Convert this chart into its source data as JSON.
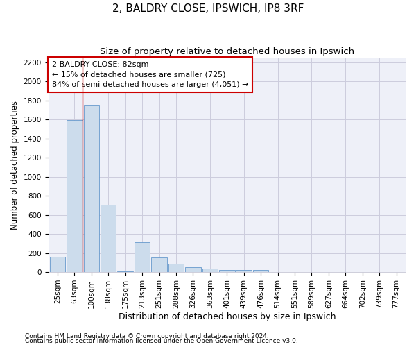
{
  "title1": "2, BALDRY CLOSE, IPSWICH, IP8 3RF",
  "title2": "Size of property relative to detached houses in Ipswich",
  "xlabel": "Distribution of detached houses by size in Ipswich",
  "ylabel": "Number of detached properties",
  "categories": [
    "25sqm",
    "63sqm",
    "100sqm",
    "138sqm",
    "175sqm",
    "213sqm",
    "251sqm",
    "288sqm",
    "326sqm",
    "363sqm",
    "401sqm",
    "439sqm",
    "476sqm",
    "514sqm",
    "551sqm",
    "589sqm",
    "627sqm",
    "664sqm",
    "702sqm",
    "739sqm",
    "777sqm"
  ],
  "values": [
    160,
    1595,
    1750,
    705,
    5,
    315,
    155,
    85,
    50,
    35,
    25,
    20,
    20,
    0,
    0,
    0,
    0,
    0,
    0,
    0,
    0
  ],
  "bar_color": "#ccdcec",
  "bar_edge_color": "#6699cc",
  "grid_color": "#ccccdd",
  "background_color": "#eef0f8",
  "vline_color": "#cc0000",
  "vline_x": 1.5,
  "annotation_text": "2 BALDRY CLOSE: 82sqm\n← 15% of detached houses are smaller (725)\n84% of semi-detached houses are larger (4,051) →",
  "annotation_box_color": "#ffffff",
  "annotation_box_edge": "#cc0000",
  "ylim": [
    0,
    2250
  ],
  "yticks": [
    0,
    200,
    400,
    600,
    800,
    1000,
    1200,
    1400,
    1600,
    1800,
    2000,
    2200
  ],
  "footer1": "Contains HM Land Registry data © Crown copyright and database right 2024.",
  "footer2": "Contains public sector information licensed under the Open Government Licence v3.0.",
  "title1_fontsize": 11,
  "title2_fontsize": 9.5,
  "xlabel_fontsize": 9,
  "ylabel_fontsize": 8.5,
  "tick_fontsize": 7.5,
  "annotation_fontsize": 8,
  "footer_fontsize": 6.5
}
